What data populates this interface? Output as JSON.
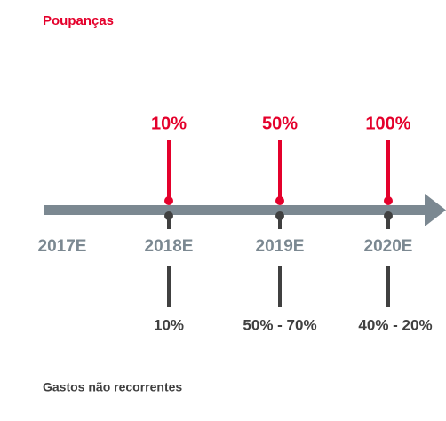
{
  "header": {
    "title": "Poupanças"
  },
  "timeline": [
    {
      "year": "2017E"
    },
    {
      "year": "2018E",
      "top": "10%",
      "bottom": "10%"
    },
    {
      "year": "2019E",
      "top": "50%",
      "bottom": "50% - 70%"
    },
    {
      "year": "2020E",
      "top": "100%",
      "bottom": "40% - 20%"
    }
  ],
  "footer": {
    "label": "Gastos não recorrentes"
  }
}
